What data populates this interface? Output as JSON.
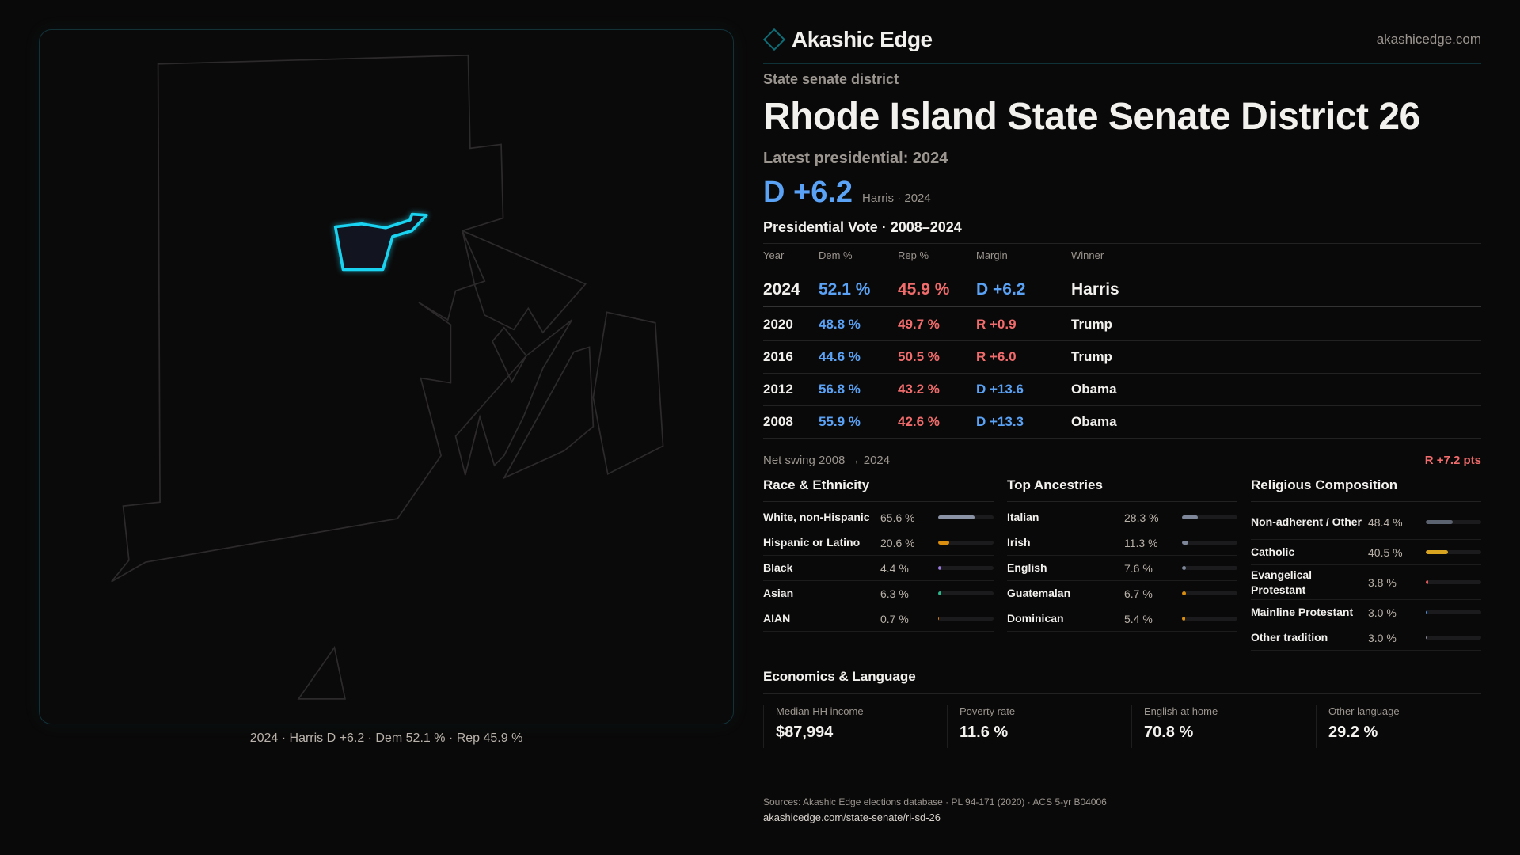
{
  "brand": {
    "name": "Akashic Edge",
    "site": "akashicedge.com",
    "logo_icon": "diamond-outline-icon"
  },
  "district": {
    "type_label": "State senate district",
    "title": "Rhode Island State Senate District 26",
    "latest_label": "Latest presidential: 2024",
    "latest_margin": "D +6.2",
    "latest_sub": "Harris · 2024"
  },
  "map": {
    "caption": "2024 · Harris D +6.2 · Dem 52.1 % · Rep 45.9 %",
    "highlight_color": "#19d3f0"
  },
  "presidential": {
    "title": "Presidential Vote · 2008–2024",
    "headers": [
      "Year",
      "Dem %",
      "Rep %",
      "Margin",
      "Winner"
    ],
    "rows": [
      {
        "year": "2024",
        "dem": "52.1 %",
        "rep": "45.9 %",
        "margin": "D +6.2",
        "party": "D",
        "winner": "Harris"
      },
      {
        "year": "2020",
        "dem": "48.8 %",
        "rep": "49.7 %",
        "margin": "R +0.9",
        "party": "R",
        "winner": "Trump"
      },
      {
        "year": "2016",
        "dem": "44.6 %",
        "rep": "50.5 %",
        "margin": "R +6.0",
        "party": "R",
        "winner": "Trump"
      },
      {
        "year": "2012",
        "dem": "56.8 %",
        "rep": "43.2 %",
        "margin": "D +13.6",
        "party": "D",
        "winner": "Obama"
      },
      {
        "year": "2008",
        "dem": "55.9 %",
        "rep": "42.6 %",
        "margin": "D +13.3",
        "party": "D",
        "winner": "Obama"
      }
    ],
    "net_swing_label": "Net swing 2008 → 2024",
    "net_swing_value": "R +7.2 pts"
  },
  "colors": {
    "dem": "#5aa2f5",
    "rep": "#f06b6b"
  },
  "sections": [
    {
      "title": "Race & Ethnicity",
      "items": [
        {
          "label": "White, non-Hispanic",
          "value": "65.6 %",
          "pct": 65.6,
          "color": "#8a93a6"
        },
        {
          "label": "Hispanic or Latino",
          "value": "20.6 %",
          "pct": 20.6,
          "color": "#d98e0f"
        },
        {
          "label": "Black",
          "value": "4.4 %",
          "pct": 4.4,
          "color": "#9b7be0"
        },
        {
          "label": "Asian",
          "value": "6.3 %",
          "pct": 6.3,
          "color": "#2bb58a"
        },
        {
          "label": "AIAN",
          "value": "0.7 %",
          "pct": 0.7,
          "color": "#d9801a"
        }
      ]
    },
    {
      "title": "Top Ancestries",
      "items": [
        {
          "label": "Italian",
          "value": "28.3 %",
          "pct": 28.3,
          "color": "#7d8799"
        },
        {
          "label": "Irish",
          "value": "11.3 %",
          "pct": 11.3,
          "color": "#7d8799"
        },
        {
          "label": "English",
          "value": "7.6 %",
          "pct": 7.6,
          "color": "#7d8799"
        },
        {
          "label": "Guatemalan",
          "value": "6.7 %",
          "pct": 6.7,
          "color": "#d98e0f"
        },
        {
          "label": "Dominican",
          "value": "5.4 %",
          "pct": 5.4,
          "color": "#d98e0f"
        }
      ]
    },
    {
      "title": "Religious Composition",
      "items": [
        {
          "label": "Non-adherent / Other",
          "value": "48.4 %",
          "pct": 48.4,
          "color": "#5c6370"
        },
        {
          "label": "Catholic",
          "value": "40.5 %",
          "pct": 40.5,
          "color": "#d9a520"
        },
        {
          "label": "Evangelical Protestant",
          "value": "3.8 %",
          "pct": 3.8,
          "color": "#e05a5a"
        },
        {
          "label": "Mainline Protestant",
          "value": "3.0 %",
          "pct": 3.0,
          "color": "#4a8fe0"
        },
        {
          "label": "Other tradition",
          "value": "3.0 %",
          "pct": 3.0,
          "color": "#8a8a95"
        }
      ]
    }
  ],
  "economics": {
    "title": "Economics & Language",
    "cards": [
      {
        "label": "Median HH income",
        "value": "$87,994"
      },
      {
        "label": "Poverty rate",
        "value": "11.6 %"
      },
      {
        "label": "English at home",
        "value": "70.8 %"
      },
      {
        "label": "Other language",
        "value": "29.2 %"
      }
    ]
  },
  "footer": {
    "sources": "Sources: Akashic Edge elections database · PL 94-171 (2020) · ACS 5-yr B04006",
    "url": "akashicedge.com/state-senate/ri-sd-26"
  }
}
